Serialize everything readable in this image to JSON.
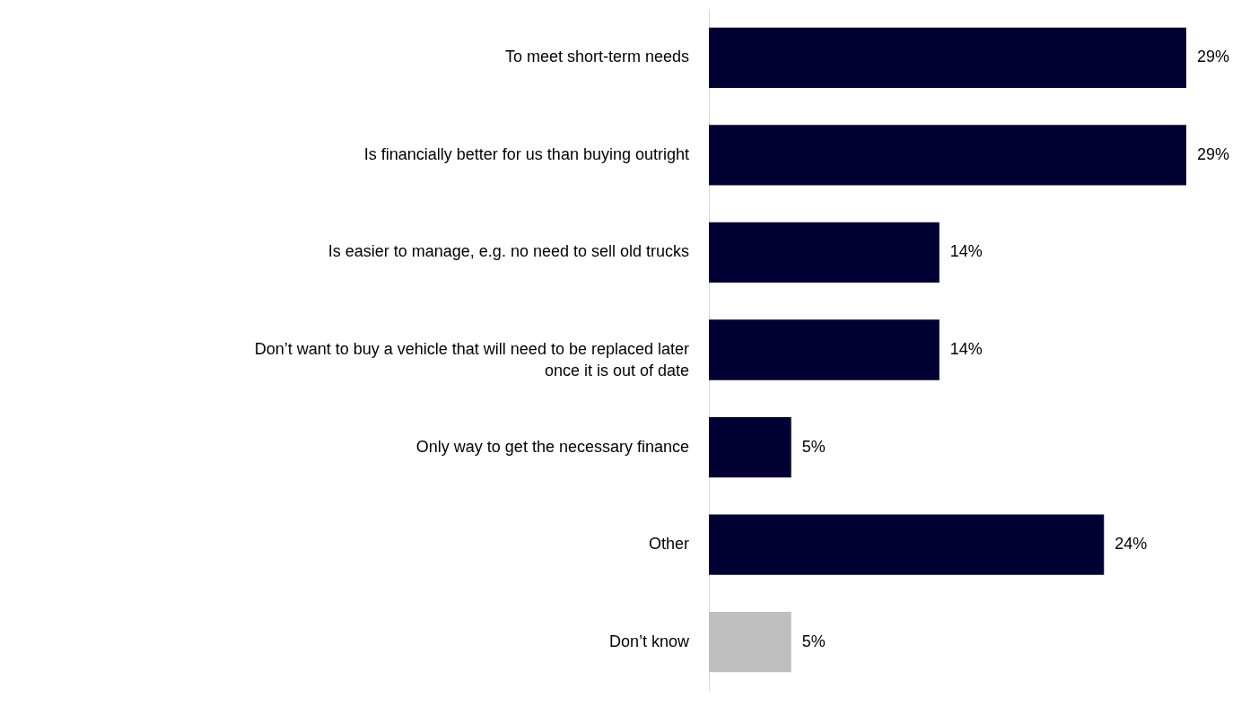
{
  "chart_data": {
    "type": "bar",
    "orientation": "horizontal",
    "categories": [
      "To meet short-term needs",
      "Is financially better for us than buying outright",
      "Is easier to manage, e.g. no need to sell old trucks",
      "Don’t want to buy a vehicle that will need to be replaced later once it is out of date",
      "Only way to get the necessary finance",
      "Other",
      "Don’t know"
    ],
    "values": [
      29,
      29,
      14,
      14,
      5,
      24,
      5
    ],
    "colors": [
      "#000033",
      "#000033",
      "#000033",
      "#000033",
      "#000033",
      "#000033",
      "#bfbfbf"
    ],
    "value_labels": [
      "29%",
      "29%",
      "14%",
      "14%",
      "5%",
      "24%",
      "5%"
    ],
    "grid": false
  }
}
